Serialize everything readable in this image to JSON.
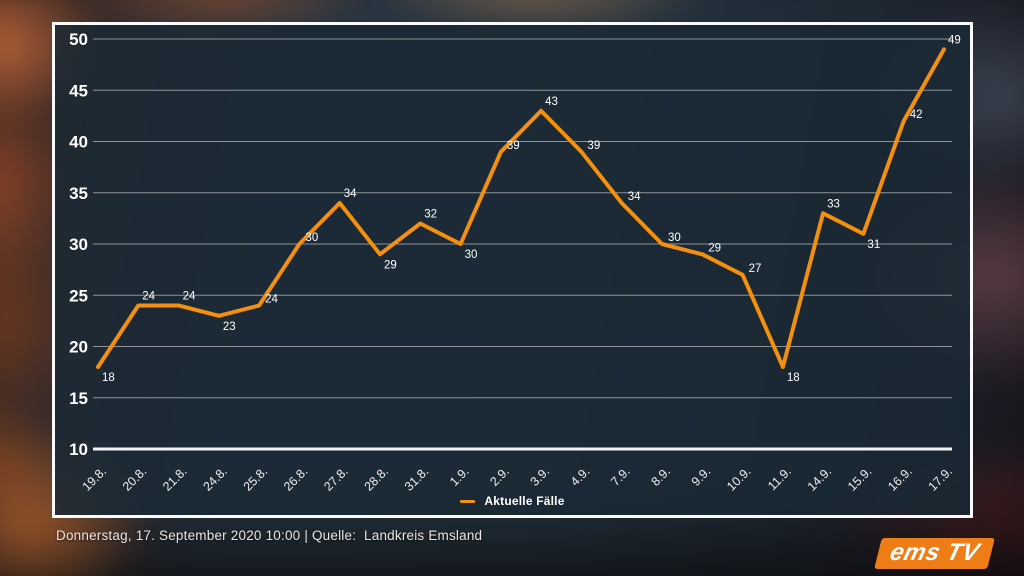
{
  "page": {
    "footer_text": "Donnerstag, 17. September 2020 10:00 | Quelle:  Landkreis Emsland",
    "logo_text": "ems TV"
  },
  "colors": {
    "line": "#F3900F",
    "logo_bg": "#EE7D16",
    "panel_border": "#FAFAFA",
    "grid": "#FFFFFF",
    "text": "#FFFFFF"
  },
  "chart_data": {
    "type": "line",
    "title": "",
    "xlabel": "",
    "ylabel": "",
    "categories": [
      "19.8.",
      "20.8.",
      "21.8.",
      "24.8.",
      "25.8.",
      "26.8.",
      "27.8.",
      "28.8.",
      "31.8.",
      "1.9.",
      "2.9.",
      "3.9.",
      "4.9.",
      "7.9.",
      "8.9.",
      "9.9.",
      "10.9.",
      "11.9.",
      "14.9.",
      "15.9.",
      "16.9.",
      "17.9."
    ],
    "series": [
      {
        "name": "Aktuelle Fälle",
        "color": "#F3900F",
        "values": [
          18,
          24,
          24,
          23,
          24,
          30,
          34,
          29,
          32,
          30,
          39,
          43,
          39,
          34,
          30,
          29,
          27,
          18,
          33,
          31,
          42,
          49
        ]
      }
    ],
    "ylim": [
      10,
      50
    ],
    "ytick_step": 5,
    "grid": true,
    "point_labels": true,
    "legend_position": "bottom-center"
  }
}
